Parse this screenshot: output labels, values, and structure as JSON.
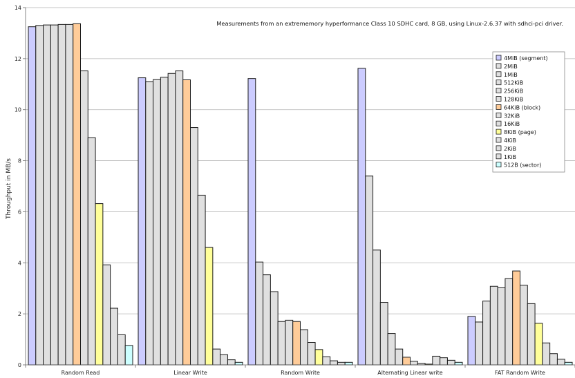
{
  "chart_data": {
    "type": "bar",
    "title": "",
    "annotation": "Measurements from an extrememory hyperformance Class 10 SDHC card, 8 GB, using Linux-2.6.37 with sdhci-pci driver.",
    "xlabel": "",
    "ylabel": "Throughput in MB/s",
    "ylim": [
      0,
      14
    ],
    "yticks": [
      "0",
      "2",
      "4",
      "6",
      "8",
      "10",
      "12",
      "14"
    ],
    "grid": true,
    "legend_position": "right",
    "categories": [
      "Random Read",
      "Linear Write",
      "Random Write",
      "Alternating Linear write",
      "FAT Random Write"
    ],
    "series": [
      {
        "name": "4MiB (segment)",
        "color": "#ccccff",
        "values": [
          13.25,
          11.25,
          11.22,
          11.62,
          1.9
        ]
      },
      {
        "name": "2MiB",
        "color": "#e0e0e0",
        "values": [
          13.3,
          11.1,
          4.03,
          7.4,
          1.68
        ]
      },
      {
        "name": "1MiB",
        "color": "#e0e0e0",
        "values": [
          13.32,
          11.18,
          3.53,
          4.5,
          2.5
        ]
      },
      {
        "name": "512KiB",
        "color": "#e0e0e0",
        "values": [
          13.32,
          11.27,
          2.87,
          2.45,
          3.08
        ]
      },
      {
        "name": "256KiB",
        "color": "#e0e0e0",
        "values": [
          13.34,
          11.42,
          1.7,
          1.23,
          3.02
        ]
      },
      {
        "name": "128KiB",
        "color": "#e0e0e0",
        "values": [
          13.34,
          11.52,
          1.75,
          0.62,
          3.38
        ]
      },
      {
        "name": "64KiB (block)",
        "color": "#ffcc99",
        "values": [
          13.37,
          11.17,
          1.7,
          0.3,
          3.68
        ]
      },
      {
        "name": "32KiB",
        "color": "#e0e0e0",
        "values": [
          11.52,
          9.3,
          1.38,
          0.14,
          3.12
        ]
      },
      {
        "name": "16KiB",
        "color": "#e0e0e0",
        "values": [
          8.9,
          6.65,
          0.88,
          0.06,
          2.4
        ]
      },
      {
        "name": "8KiB (page)",
        "color": "#ffff99",
        "values": [
          6.32,
          4.6,
          0.6,
          0.03,
          1.63
        ]
      },
      {
        "name": "4KiB",
        "color": "#e0e0e0",
        "values": [
          3.92,
          0.62,
          0.32,
          0.34,
          0.86
        ]
      },
      {
        "name": "2KiB",
        "color": "#e0e0e0",
        "values": [
          2.22,
          0.4,
          0.16,
          0.28,
          0.44
        ]
      },
      {
        "name": "1KiB",
        "color": "#e0e0e0",
        "values": [
          1.18,
          0.2,
          0.1,
          0.18,
          0.22
        ]
      },
      {
        "name": "512B (sector)",
        "color": "#ccffff",
        "values": [
          0.76,
          0.1,
          0.1,
          0.1,
          0.1
        ]
      }
    ]
  }
}
